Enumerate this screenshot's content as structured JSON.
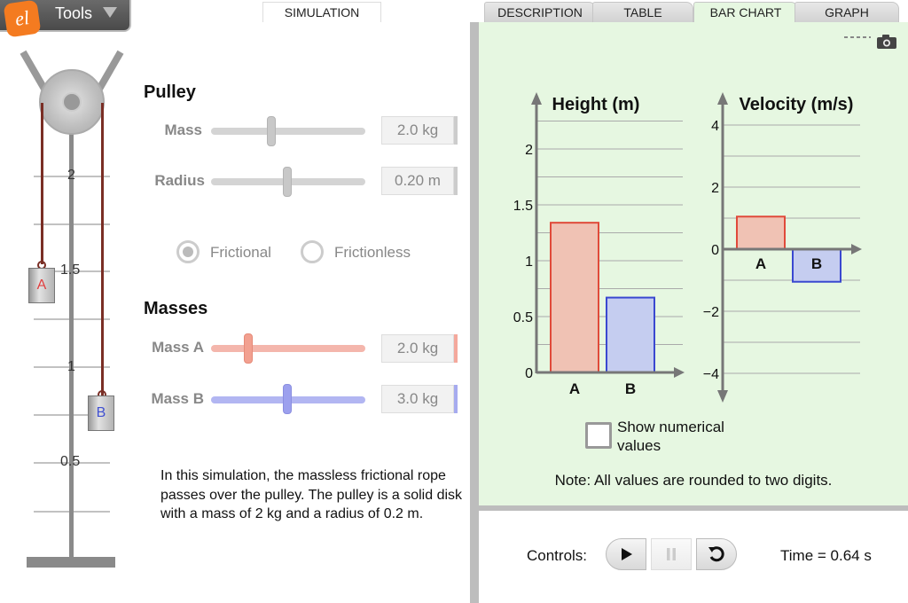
{
  "header": {
    "tools_label": "Tools",
    "logo_text": "el"
  },
  "tabs": {
    "simulation": "SIMULATION",
    "description": "DESCRIPTION",
    "table": "TABLE",
    "bar_chart": "BAR CHART",
    "graph": "GRAPH"
  },
  "ruler": {
    "labels": [
      "2",
      "1.5",
      "1",
      "0.5"
    ]
  },
  "weights": {
    "a": "A",
    "b": "B"
  },
  "pulley": {
    "title": "Pulley",
    "mass": {
      "label": "Mass",
      "value": "2.0 kg",
      "level": 0.4
    },
    "radius": {
      "label": "Radius",
      "value": "0.20 m",
      "level": 0.5
    },
    "friction": {
      "option1": "Frictional",
      "option2": "Frictionless",
      "selected": "Frictional"
    }
  },
  "masses": {
    "title": "Masses",
    "mass_a": {
      "label": "Mass A",
      "value": "2.0 kg",
      "level": 0.25,
      "color": "#f4a89c"
    },
    "mass_b": {
      "label": "Mass B",
      "value": "3.0 kg",
      "level": 0.5,
      "color": "#a6abef"
    }
  },
  "description": "In this simulation, the massless frictional rope passes over the pulley. The pulley is a solid disk with a mass of 2 kg and a radius of 0.2 m.",
  "chart_data": [
    {
      "type": "bar",
      "title": "Height (m)",
      "categories": [
        "A",
        "B"
      ],
      "values": [
        1.34,
        0.67
      ],
      "ylim": [
        0,
        2.3
      ],
      "yticks": [
        "0",
        "0.5",
        "1",
        "1.5",
        "2"
      ],
      "colors": [
        "#f0c2b4",
        "#c5cdf0"
      ],
      "grid": true
    },
    {
      "type": "bar",
      "title": "Velocity (m/s)",
      "categories": [
        "A",
        "B"
      ],
      "values": [
        1.05,
        -1.05
      ],
      "ylim": [
        -4.6,
        4.6
      ],
      "yticks": [
        "4",
        "2",
        "0",
        "−2",
        "−4"
      ],
      "colors": [
        "#f0c2b4",
        "#c5cdf0"
      ],
      "grid": true
    }
  ],
  "chart_panel": {
    "checkbox_label_line1": "Show numerical",
    "checkbox_label_line2": "values",
    "note": "Note: All values are rounded to two digits."
  },
  "controls": {
    "label": "Controls:",
    "time": "Time = 0.64 s"
  }
}
